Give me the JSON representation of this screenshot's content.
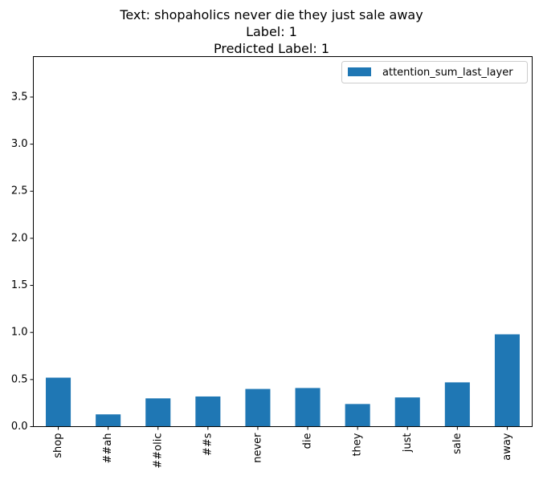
{
  "chart_data": {
    "type": "bar",
    "title_lines": [
      "Text: shopaholics never die they just sale away",
      "Label: 1",
      "Predicted Label: 1"
    ],
    "categories": [
      "shop",
      "##ah",
      "##olic",
      "##s",
      "never",
      "die",
      "they",
      "just",
      "sale",
      "away"
    ],
    "series": [
      {
        "name": "attention_sum_last_layer",
        "values": [
          0.52,
          0.13,
          0.3,
          0.32,
          0.4,
          0.41,
          0.24,
          0.31,
          0.47,
          0.98
        ],
        "color": "#1f77b4"
      }
    ],
    "y_ticks": [
      0.0,
      0.5,
      1.0,
      1.5,
      2.0,
      2.5,
      3.0,
      3.5
    ],
    "ylim": [
      0,
      3.93
    ],
    "grid": false,
    "legend_position": "top-right"
  }
}
